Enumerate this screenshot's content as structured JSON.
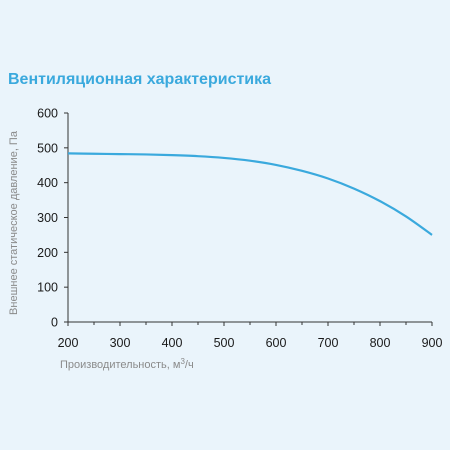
{
  "chart_data": {
    "type": "line",
    "title": "Вентиляционная характеристика",
    "xlabel": "Производительность, м",
    "xlabel_sup": "3",
    "xlabel_suffix": "/ч",
    "ylabel": "Внешнее статическое давление, Па",
    "xlim": [
      200,
      900
    ],
    "ylim": [
      0,
      600
    ],
    "xticks": [
      200,
      300,
      400,
      500,
      600,
      700,
      800,
      900
    ],
    "yticks": [
      0,
      100,
      200,
      300,
      400,
      500,
      600
    ],
    "grid": false,
    "series": [
      {
        "color": "#3aa9dd",
        "x": [
          200,
          250,
          300,
          350,
          400,
          450,
          500,
          550,
          600,
          650,
          700,
          750,
          800,
          850,
          900
        ],
        "y": [
          484,
          483,
          482,
          481,
          479,
          476,
          471,
          463,
          451,
          434,
          412,
          383,
          347,
          303,
          250
        ]
      }
    ]
  }
}
